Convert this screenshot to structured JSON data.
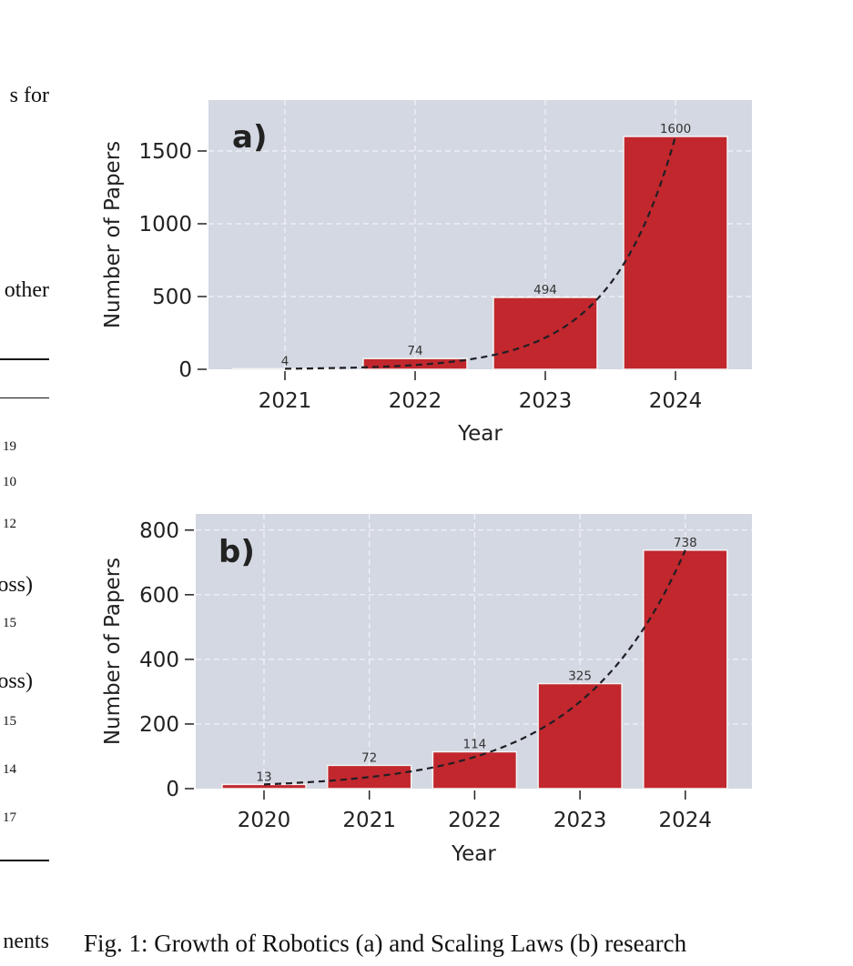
{
  "left_column": {
    "fragments": [
      {
        "id": "frag-for",
        "text": "s  for"
      },
      {
        "id": "frag-other",
        "text": "other"
      },
      {
        "id": "frag-19",
        "text": "19"
      },
      {
        "id": "frag-10",
        "text": "10"
      },
      {
        "id": "frag-12",
        "text": "12"
      },
      {
        "id": "frag-oss-1",
        "text": "oss)"
      },
      {
        "id": "frag-15a",
        "text": "15"
      },
      {
        "id": "frag-oss-2",
        "text": "oss)"
      },
      {
        "id": "frag-15b",
        "text": "15"
      },
      {
        "id": "frag-14",
        "text": "14"
      },
      {
        "id": "frag-17",
        "text": "17"
      },
      {
        "id": "frag-ments",
        "text": "nents"
      }
    ]
  },
  "caption": "Fig. 1: Growth of Robotics (a) and Scaling Laws (b) research",
  "colors": {
    "bar": "#c1272d",
    "panel_background": "#d3d8e2",
    "trend_line": "#1f1f24"
  },
  "chart_data": [
    {
      "type": "bar",
      "panel_label": "a)",
      "categories": [
        "2021",
        "2022",
        "2023",
        "2024"
      ],
      "values": [
        4,
        74,
        494,
        1600
      ],
      "data_labels": [
        "4",
        "74",
        "494",
        "1600"
      ],
      "xlabel": "Year",
      "ylabel": "Number of Papers",
      "ylim": [
        0,
        1850
      ],
      "yticks": [
        0,
        500,
        1000,
        1500
      ],
      "trend": "dashed exponential fit",
      "grid": true
    },
    {
      "type": "bar",
      "panel_label": "b)",
      "categories": [
        "2020",
        "2021",
        "2022",
        "2023",
        "2024"
      ],
      "values": [
        13,
        72,
        114,
        325,
        738
      ],
      "data_labels": [
        "13",
        "72",
        "114",
        "325",
        "738"
      ],
      "xlabel": "Year",
      "ylabel": "Number of Papers",
      "ylim": [
        0,
        850
      ],
      "yticks": [
        0,
        200,
        400,
        600,
        800
      ],
      "trend": "dashed exponential fit",
      "grid": true
    }
  ]
}
